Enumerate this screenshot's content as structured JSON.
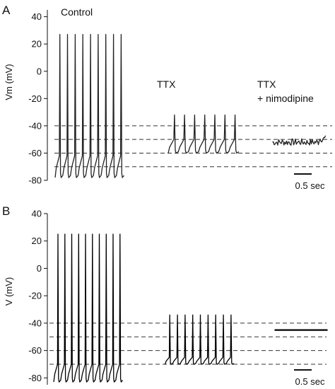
{
  "chart_data": [
    {
      "type": "line",
      "panel_label": "A",
      "ylabel": "Vm (mV)",
      "ylim": [
        -80,
        45
      ],
      "yticks": [
        40,
        20,
        0,
        -20,
        -40,
        -60,
        -80
      ],
      "reference_lines_mV": [
        -40,
        -50,
        -60,
        -70
      ],
      "scale_bar": {
        "label": "0.5 sec",
        "seconds": 0.5
      },
      "series": [
        {
          "name": "Control",
          "label_lines": [
            "Control"
          ],
          "kind": "spikes",
          "start_s": 0.0,
          "duration_s": 1.95,
          "n_spikes": 9,
          "trough_mV": -78,
          "spike_peak_mV": 27,
          "spike_start_mV": -62,
          "color": "#222222"
        },
        {
          "name": "TTX",
          "label_lines": [
            "TTX"
          ],
          "kind": "spikes",
          "start_s": 3.2,
          "duration_s": 2.0,
          "n_spikes": 7,
          "trough_mV": -60,
          "spike_peak_mV": -32,
          "spike_start_mV": -50,
          "color": "#222222"
        },
        {
          "name": "TTX + nimodipine",
          "label_lines": [
            "TTX",
            "+ nimodipine"
          ],
          "kind": "noise",
          "start_s": 6.15,
          "duration_s": 1.5,
          "baseline_mV": -52,
          "noise_mV": 2.5,
          "color": "#222222"
        }
      ]
    },
    {
      "type": "line",
      "panel_label": "B",
      "ylabel": "V (mV)",
      "ylim": [
        -85,
        40
      ],
      "yticks": [
        40,
        20,
        0,
        -20,
        -40,
        -60,
        -80
      ],
      "reference_lines_mV": [
        -40,
        -50,
        -60,
        -70
      ],
      "scale_bar": {
        "label": "0.5 sec",
        "seconds": 0.5
      },
      "series": [
        {
          "name": "control",
          "label_lines": [],
          "kind": "spikes",
          "start_s": 0.0,
          "duration_s": 1.95,
          "n_spikes": 10,
          "trough_mV": -83,
          "spike_peak_mV": 25,
          "spike_start_mV": -70,
          "color": "#000000"
        },
        {
          "name": "TTX",
          "label_lines": [],
          "kind": "spikes",
          "start_s": 3.15,
          "duration_s": 1.95,
          "n_spikes": 9,
          "trough_mV": -70,
          "spike_peak_mV": -34,
          "spike_start_mV": -65,
          "color": "#000000"
        },
        {
          "name": "TTX + nimodipine",
          "label_lines": [],
          "kind": "flat",
          "start_s": 6.25,
          "duration_s": 1.5,
          "baseline_mV": -45,
          "color": "#000000"
        }
      ]
    }
  ]
}
